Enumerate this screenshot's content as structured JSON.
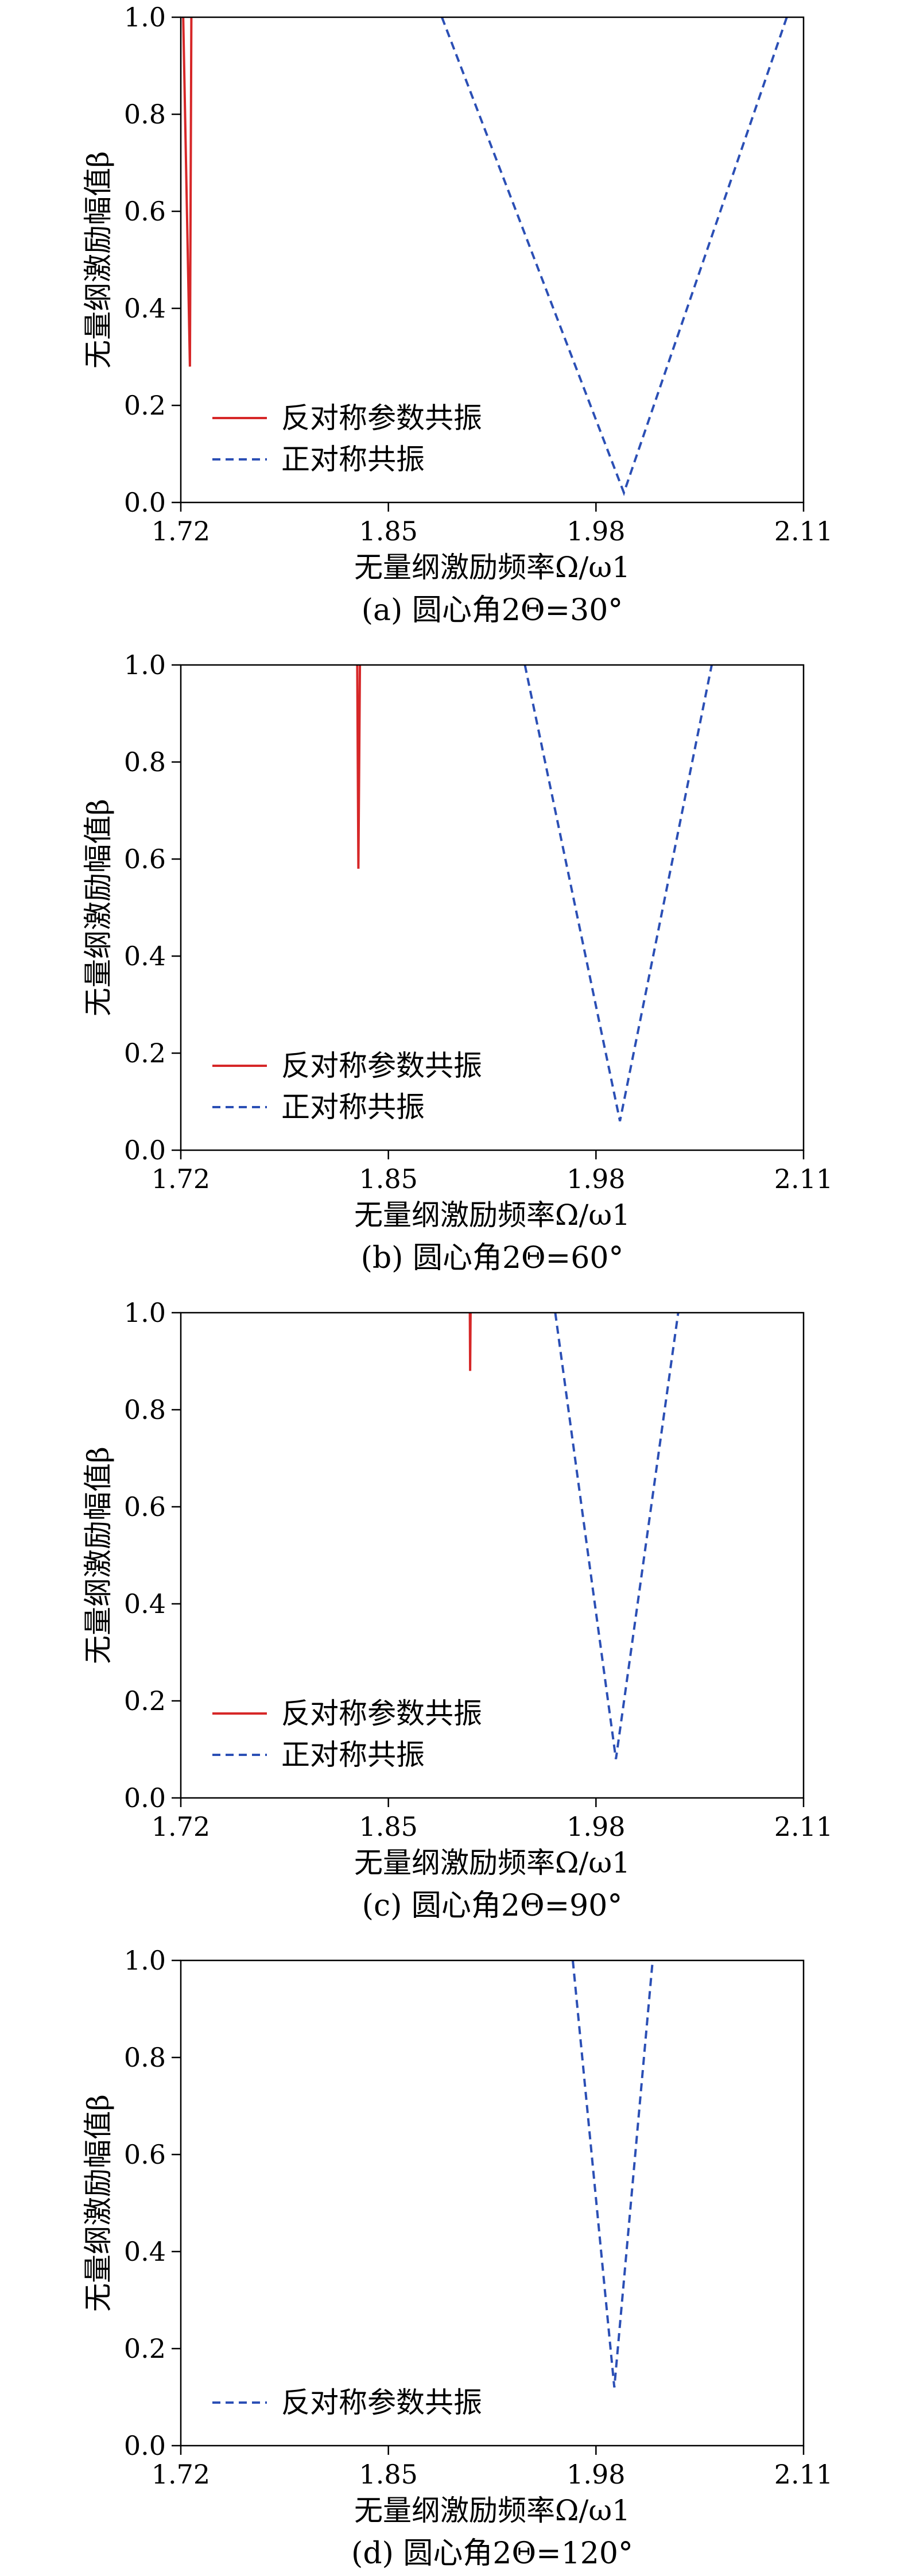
{
  "chart_data": [
    {
      "type": "line",
      "caption": "(a) 圆心角2Θ=30°",
      "xlabel": "无量纲激励频率Ω/ω1",
      "ylabel": "无量纲激励幅值β",
      "xlim": [
        1.72,
        2.11
      ],
      "ylim": [
        0.0,
        1.0
      ],
      "xticks": [
        "1.72",
        "1.85",
        "1.98",
        "2.11"
      ],
      "yticks": [
        "0.0",
        "0.2",
        "0.4",
        "0.6",
        "0.8",
        "1.0"
      ],
      "legend_position": "lower-left",
      "series": [
        {
          "name": "反对称参数共振",
          "style": "solid",
          "color": "#d62728",
          "x": [
            1.7215,
            1.7257,
            1.7266
          ],
          "y": [
            1.0,
            0.28,
            1.0
          ]
        },
        {
          "name": "正对称共振",
          "style": "dashed",
          "color": "#2b4fb5",
          "x": [
            1.8835,
            1.9975,
            2.0995
          ],
          "y": [
            1.0,
            0.02,
            1.0
          ]
        }
      ]
    },
    {
      "type": "line",
      "caption": "(b) 圆心角2Θ=60°",
      "xlabel": "无量纲激励频率Ω/ω1",
      "ylabel": "无量纲激励幅值β",
      "xlim": [
        1.72,
        2.11
      ],
      "ylim": [
        0.0,
        1.0
      ],
      "xticks": [
        "1.72",
        "1.85",
        "1.98",
        "2.11"
      ],
      "yticks": [
        "0.0",
        "0.2",
        "0.4",
        "0.6",
        "0.8",
        "1.0"
      ],
      "legend_position": "lower-left",
      "series": [
        {
          "name": "反对称参数共振",
          "style": "solid",
          "color": "#d62728",
          "x": [
            1.8305,
            1.8312,
            1.8322
          ],
          "y": [
            1.0,
            0.58,
            1.0
          ]
        },
        {
          "name": "正对称共振",
          "style": "dashed",
          "color": "#2b4fb5",
          "x": [
            1.9355,
            1.995,
            2.0525
          ],
          "y": [
            1.0,
            0.06,
            1.0
          ]
        }
      ]
    },
    {
      "type": "line",
      "caption": "(c) 圆心角2Θ=90°",
      "xlabel": "无量纲激励频率Ω/ω1",
      "ylabel": "无量纲激励幅值β",
      "xlim": [
        1.72,
        2.11
      ],
      "ylim": [
        0.0,
        1.0
      ],
      "xticks": [
        "1.72",
        "1.85",
        "1.98",
        "2.11"
      ],
      "yticks": [
        "0.0",
        "0.2",
        "0.4",
        "0.6",
        "0.8",
        "1.0"
      ],
      "legend_position": "lower-left",
      "series": [
        {
          "name": "反对称参数共振",
          "style": "solid",
          "color": "#d62728",
          "x": [
            1.901,
            1.9012,
            1.9015
          ],
          "y": [
            1.0,
            0.88,
            1.0
          ]
        },
        {
          "name": "正对称共振",
          "style": "dashed",
          "color": "#2b4fb5",
          "x": [
            1.9545,
            1.9925,
            2.0315
          ],
          "y": [
            1.0,
            0.08,
            1.0
          ]
        }
      ]
    },
    {
      "type": "line",
      "caption": "(d) 圆心角2Θ=120°",
      "xlabel": "无量纲激励频率Ω/ω1",
      "ylabel": "无量纲激励幅值β",
      "xlim": [
        1.72,
        2.11
      ],
      "ylim": [
        0.0,
        1.0
      ],
      "xticks": [
        "1.72",
        "1.85",
        "1.98",
        "2.11"
      ],
      "yticks": [
        "0.0",
        "0.2",
        "0.4",
        "0.6",
        "0.8",
        "1.0"
      ],
      "legend_position": "lower-left",
      "series": [
        {
          "name": "反对称参数共振",
          "style": "dashed",
          "color": "#2b4fb5",
          "x": [
            1.9655,
            1.9915,
            2.0155
          ],
          "y": [
            1.0,
            0.12,
            1.0
          ]
        }
      ]
    }
  ]
}
